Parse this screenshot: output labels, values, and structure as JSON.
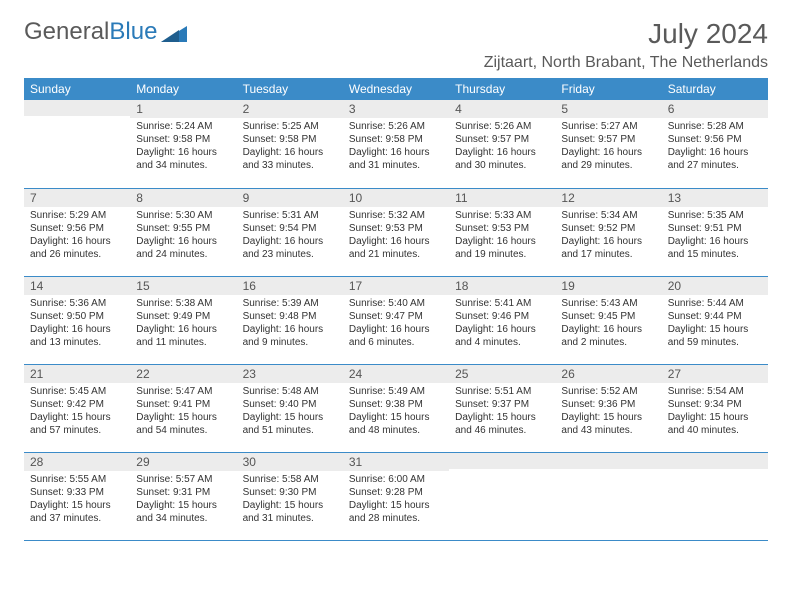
{
  "brand": {
    "part1": "General",
    "part2": "Blue"
  },
  "title": "July 2024",
  "location": "Zijtaart, North Brabant, The Netherlands",
  "colors": {
    "header_bg": "#3b8bc8",
    "header_text": "#ffffff",
    "daynum_bg": "#ececec",
    "border": "#3b8bc8",
    "brand_gray": "#5a5a5a",
    "brand_blue": "#2a7ab8"
  },
  "weekdays": [
    "Sunday",
    "Monday",
    "Tuesday",
    "Wednesday",
    "Thursday",
    "Friday",
    "Saturday"
  ],
  "weeks": [
    [
      {
        "n": "",
        "sr": "",
        "ss": "",
        "dl": ""
      },
      {
        "n": "1",
        "sr": "Sunrise: 5:24 AM",
        "ss": "Sunset: 9:58 PM",
        "dl": "Daylight: 16 hours and 34 minutes."
      },
      {
        "n": "2",
        "sr": "Sunrise: 5:25 AM",
        "ss": "Sunset: 9:58 PM",
        "dl": "Daylight: 16 hours and 33 minutes."
      },
      {
        "n": "3",
        "sr": "Sunrise: 5:26 AM",
        "ss": "Sunset: 9:58 PM",
        "dl": "Daylight: 16 hours and 31 minutes."
      },
      {
        "n": "4",
        "sr": "Sunrise: 5:26 AM",
        "ss": "Sunset: 9:57 PM",
        "dl": "Daylight: 16 hours and 30 minutes."
      },
      {
        "n": "5",
        "sr": "Sunrise: 5:27 AM",
        "ss": "Sunset: 9:57 PM",
        "dl": "Daylight: 16 hours and 29 minutes."
      },
      {
        "n": "6",
        "sr": "Sunrise: 5:28 AM",
        "ss": "Sunset: 9:56 PM",
        "dl": "Daylight: 16 hours and 27 minutes."
      }
    ],
    [
      {
        "n": "7",
        "sr": "Sunrise: 5:29 AM",
        "ss": "Sunset: 9:56 PM",
        "dl": "Daylight: 16 hours and 26 minutes."
      },
      {
        "n": "8",
        "sr": "Sunrise: 5:30 AM",
        "ss": "Sunset: 9:55 PM",
        "dl": "Daylight: 16 hours and 24 minutes."
      },
      {
        "n": "9",
        "sr": "Sunrise: 5:31 AM",
        "ss": "Sunset: 9:54 PM",
        "dl": "Daylight: 16 hours and 23 minutes."
      },
      {
        "n": "10",
        "sr": "Sunrise: 5:32 AM",
        "ss": "Sunset: 9:53 PM",
        "dl": "Daylight: 16 hours and 21 minutes."
      },
      {
        "n": "11",
        "sr": "Sunrise: 5:33 AM",
        "ss": "Sunset: 9:53 PM",
        "dl": "Daylight: 16 hours and 19 minutes."
      },
      {
        "n": "12",
        "sr": "Sunrise: 5:34 AM",
        "ss": "Sunset: 9:52 PM",
        "dl": "Daylight: 16 hours and 17 minutes."
      },
      {
        "n": "13",
        "sr": "Sunrise: 5:35 AM",
        "ss": "Sunset: 9:51 PM",
        "dl": "Daylight: 16 hours and 15 minutes."
      }
    ],
    [
      {
        "n": "14",
        "sr": "Sunrise: 5:36 AM",
        "ss": "Sunset: 9:50 PM",
        "dl": "Daylight: 16 hours and 13 minutes."
      },
      {
        "n": "15",
        "sr": "Sunrise: 5:38 AM",
        "ss": "Sunset: 9:49 PM",
        "dl": "Daylight: 16 hours and 11 minutes."
      },
      {
        "n": "16",
        "sr": "Sunrise: 5:39 AM",
        "ss": "Sunset: 9:48 PM",
        "dl": "Daylight: 16 hours and 9 minutes."
      },
      {
        "n": "17",
        "sr": "Sunrise: 5:40 AM",
        "ss": "Sunset: 9:47 PM",
        "dl": "Daylight: 16 hours and 6 minutes."
      },
      {
        "n": "18",
        "sr": "Sunrise: 5:41 AM",
        "ss": "Sunset: 9:46 PM",
        "dl": "Daylight: 16 hours and 4 minutes."
      },
      {
        "n": "19",
        "sr": "Sunrise: 5:43 AM",
        "ss": "Sunset: 9:45 PM",
        "dl": "Daylight: 16 hours and 2 minutes."
      },
      {
        "n": "20",
        "sr": "Sunrise: 5:44 AM",
        "ss": "Sunset: 9:44 PM",
        "dl": "Daylight: 15 hours and 59 minutes."
      }
    ],
    [
      {
        "n": "21",
        "sr": "Sunrise: 5:45 AM",
        "ss": "Sunset: 9:42 PM",
        "dl": "Daylight: 15 hours and 57 minutes."
      },
      {
        "n": "22",
        "sr": "Sunrise: 5:47 AM",
        "ss": "Sunset: 9:41 PM",
        "dl": "Daylight: 15 hours and 54 minutes."
      },
      {
        "n": "23",
        "sr": "Sunrise: 5:48 AM",
        "ss": "Sunset: 9:40 PM",
        "dl": "Daylight: 15 hours and 51 minutes."
      },
      {
        "n": "24",
        "sr": "Sunrise: 5:49 AM",
        "ss": "Sunset: 9:38 PM",
        "dl": "Daylight: 15 hours and 48 minutes."
      },
      {
        "n": "25",
        "sr": "Sunrise: 5:51 AM",
        "ss": "Sunset: 9:37 PM",
        "dl": "Daylight: 15 hours and 46 minutes."
      },
      {
        "n": "26",
        "sr": "Sunrise: 5:52 AM",
        "ss": "Sunset: 9:36 PM",
        "dl": "Daylight: 15 hours and 43 minutes."
      },
      {
        "n": "27",
        "sr": "Sunrise: 5:54 AM",
        "ss": "Sunset: 9:34 PM",
        "dl": "Daylight: 15 hours and 40 minutes."
      }
    ],
    [
      {
        "n": "28",
        "sr": "Sunrise: 5:55 AM",
        "ss": "Sunset: 9:33 PM",
        "dl": "Daylight: 15 hours and 37 minutes."
      },
      {
        "n": "29",
        "sr": "Sunrise: 5:57 AM",
        "ss": "Sunset: 9:31 PM",
        "dl": "Daylight: 15 hours and 34 minutes."
      },
      {
        "n": "30",
        "sr": "Sunrise: 5:58 AM",
        "ss": "Sunset: 9:30 PM",
        "dl": "Daylight: 15 hours and 31 minutes."
      },
      {
        "n": "31",
        "sr": "Sunrise: 6:00 AM",
        "ss": "Sunset: 9:28 PM",
        "dl": "Daylight: 15 hours and 28 minutes."
      },
      {
        "n": "",
        "sr": "",
        "ss": "",
        "dl": ""
      },
      {
        "n": "",
        "sr": "",
        "ss": "",
        "dl": ""
      },
      {
        "n": "",
        "sr": "",
        "ss": "",
        "dl": ""
      }
    ]
  ]
}
